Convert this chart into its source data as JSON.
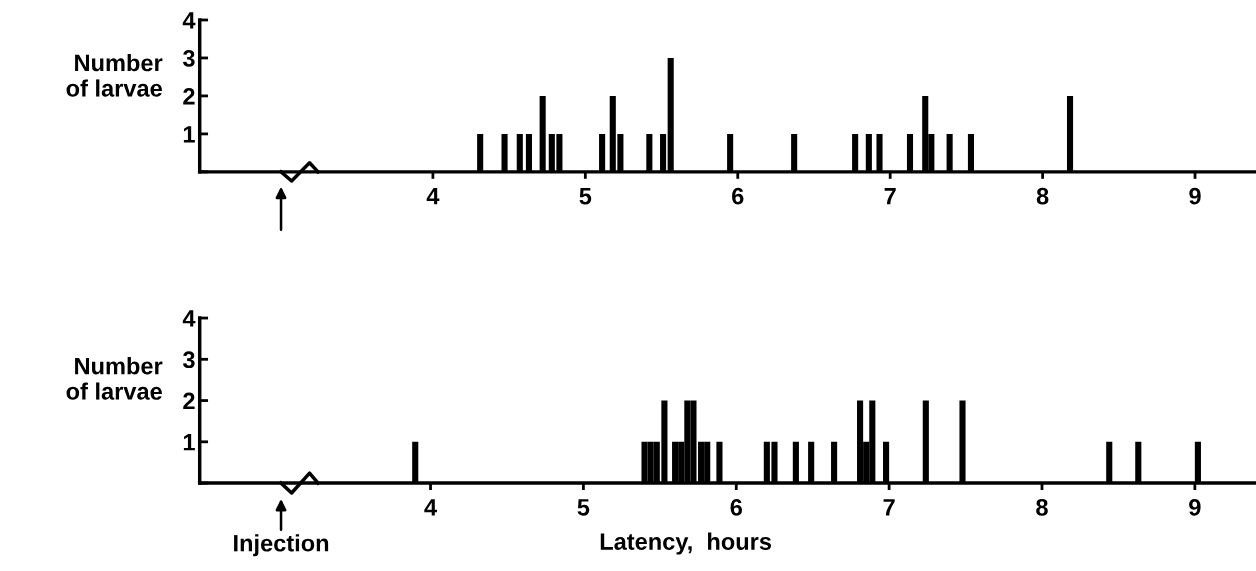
{
  "chart_data": [
    {
      "type": "bar",
      "ylabel": "Number\nof larvae",
      "x": [
        4.31,
        4.47,
        4.57,
        4.63,
        4.72,
        4.78,
        4.83,
        5.11,
        5.18,
        5.23,
        5.42,
        5.51,
        5.56,
        5.95,
        6.37,
        6.77,
        6.86,
        6.93,
        7.13,
        7.23,
        7.27,
        7.39,
        7.53,
        8.18
      ],
      "series": [
        {
          "color": "#000000",
          "values": [
            1,
            1,
            1,
            1,
            2,
            1,
            1,
            1,
            2,
            1,
            1,
            1,
            3,
            1,
            1,
            1,
            1,
            1,
            1,
            2,
            1,
            1,
            1,
            2
          ]
        }
      ],
      "xlim": [
        2.47,
        9.4
      ],
      "xticks": [
        4,
        5,
        6,
        7,
        8,
        9
      ],
      "ylim": [
        0,
        4
      ],
      "yticks": [
        {
          "value": 0,
          "label": null
        },
        1,
        2,
        3,
        4
      ],
      "grid": false,
      "legend": false
    },
    {
      "type": "bar",
      "ylabel": "Number\nof larvae",
      "xlabel": "Latency,  hours",
      "annotations": [
        "Injection"
      ],
      "x": [
        3.9,
        5.4,
        5.44,
        5.48,
        5.53,
        5.6,
        5.64,
        5.68,
        5.72,
        5.77,
        5.81,
        5.89,
        6.2,
        6.25,
        6.39,
        6.49,
        6.64,
        6.81,
        6.85,
        6.89,
        6.98,
        7.24,
        7.48,
        8.44,
        8.63,
        9.02
      ],
      "series": [
        {
          "color": "#000000",
          "values": [
            1,
            1,
            1,
            1,
            2,
            1,
            1,
            2,
            2,
            1,
            1,
            1,
            1,
            1,
            1,
            1,
            1,
            2,
            1,
            2,
            1,
            2,
            2,
            1,
            1,
            1
          ]
        }
      ],
      "xlim": [
        2.49,
        9.4
      ],
      "xticks": [
        4,
        5,
        6,
        7,
        8,
        9
      ],
      "ylim": [
        0,
        4
      ],
      "yticks": [
        {
          "value": 0,
          "label": null
        },
        1,
        2,
        3,
        4
      ],
      "grid": false,
      "legend": false
    }
  ]
}
